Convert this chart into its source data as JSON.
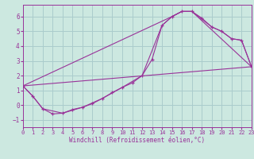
{
  "xlabel": "Windchill (Refroidissement éolien,°C)",
  "bg_color": "#cce8e0",
  "grid_color": "#aacccc",
  "line_color": "#993399",
  "xlim": [
    0,
    23
  ],
  "ylim": [
    -1.5,
    6.8
  ],
  "xticks": [
    0,
    1,
    2,
    3,
    4,
    5,
    6,
    7,
    8,
    9,
    10,
    11,
    12,
    13,
    14,
    15,
    16,
    17,
    18,
    19,
    20,
    21,
    22,
    23
  ],
  "yticks": [
    -1,
    0,
    1,
    2,
    3,
    4,
    5,
    6
  ],
  "series1_x": [
    0,
    1,
    2,
    3,
    4,
    5,
    6,
    7,
    8,
    9,
    10,
    11,
    12,
    13,
    14,
    15,
    16,
    17,
    18,
    19,
    20,
    21,
    22,
    23
  ],
  "series1_y": [
    1.3,
    0.6,
    -0.25,
    -0.6,
    -0.55,
    -0.3,
    -0.15,
    0.1,
    0.45,
    0.85,
    1.2,
    1.5,
    2.0,
    3.1,
    5.4,
    6.0,
    6.35,
    6.35,
    5.9,
    5.3,
    5.0,
    4.5,
    4.4,
    2.6
  ],
  "series2_x": [
    0,
    1,
    2,
    4,
    6,
    8,
    10,
    12,
    14,
    15,
    16,
    17,
    19,
    20,
    21,
    22,
    23
  ],
  "series2_y": [
    1.3,
    0.6,
    -0.25,
    -0.55,
    -0.15,
    0.45,
    1.2,
    2.0,
    5.4,
    6.0,
    6.35,
    6.35,
    5.3,
    5.0,
    4.5,
    4.4,
    2.6
  ],
  "series3_x": [
    0,
    23
  ],
  "series3_y": [
    1.3,
    2.6
  ],
  "series4_x": [
    0,
    15,
    16,
    17,
    23
  ],
  "series4_y": [
    1.3,
    6.0,
    6.35,
    6.35,
    2.6
  ]
}
